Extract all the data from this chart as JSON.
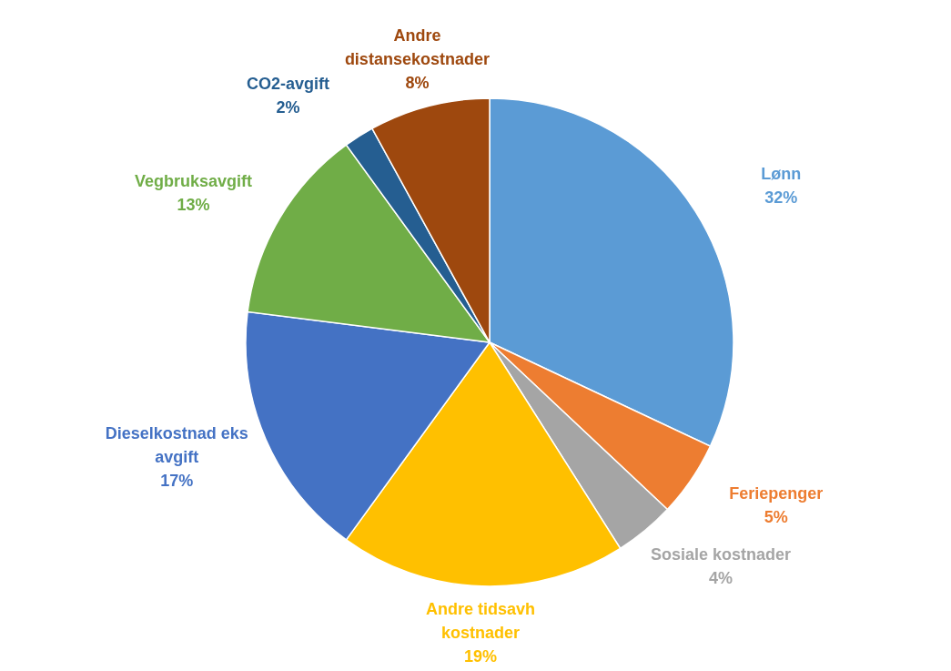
{
  "chart_data": {
    "type": "pie",
    "categories": [
      "Lønn",
      "Feriepenger",
      "Sosiale kostnader",
      "Andre tidsavh kostnader",
      "Dieselkostnad eks avgift",
      "Vegbruksavgift",
      "CO2-avgift",
      "Andre distansekostnader"
    ],
    "values": [
      32,
      5,
      4,
      19,
      17,
      13,
      2,
      8
    ],
    "value_labels": [
      "32%",
      "5%",
      "4%",
      "19%",
      "17%",
      "13%",
      "2%",
      "8%"
    ],
    "colors": [
      "#5b9bd5",
      "#ed7d31",
      "#a5a5a5",
      "#ffc000",
      "#4472c4",
      "#70ad47",
      "#255e91",
      "#9e480e"
    ]
  }
}
